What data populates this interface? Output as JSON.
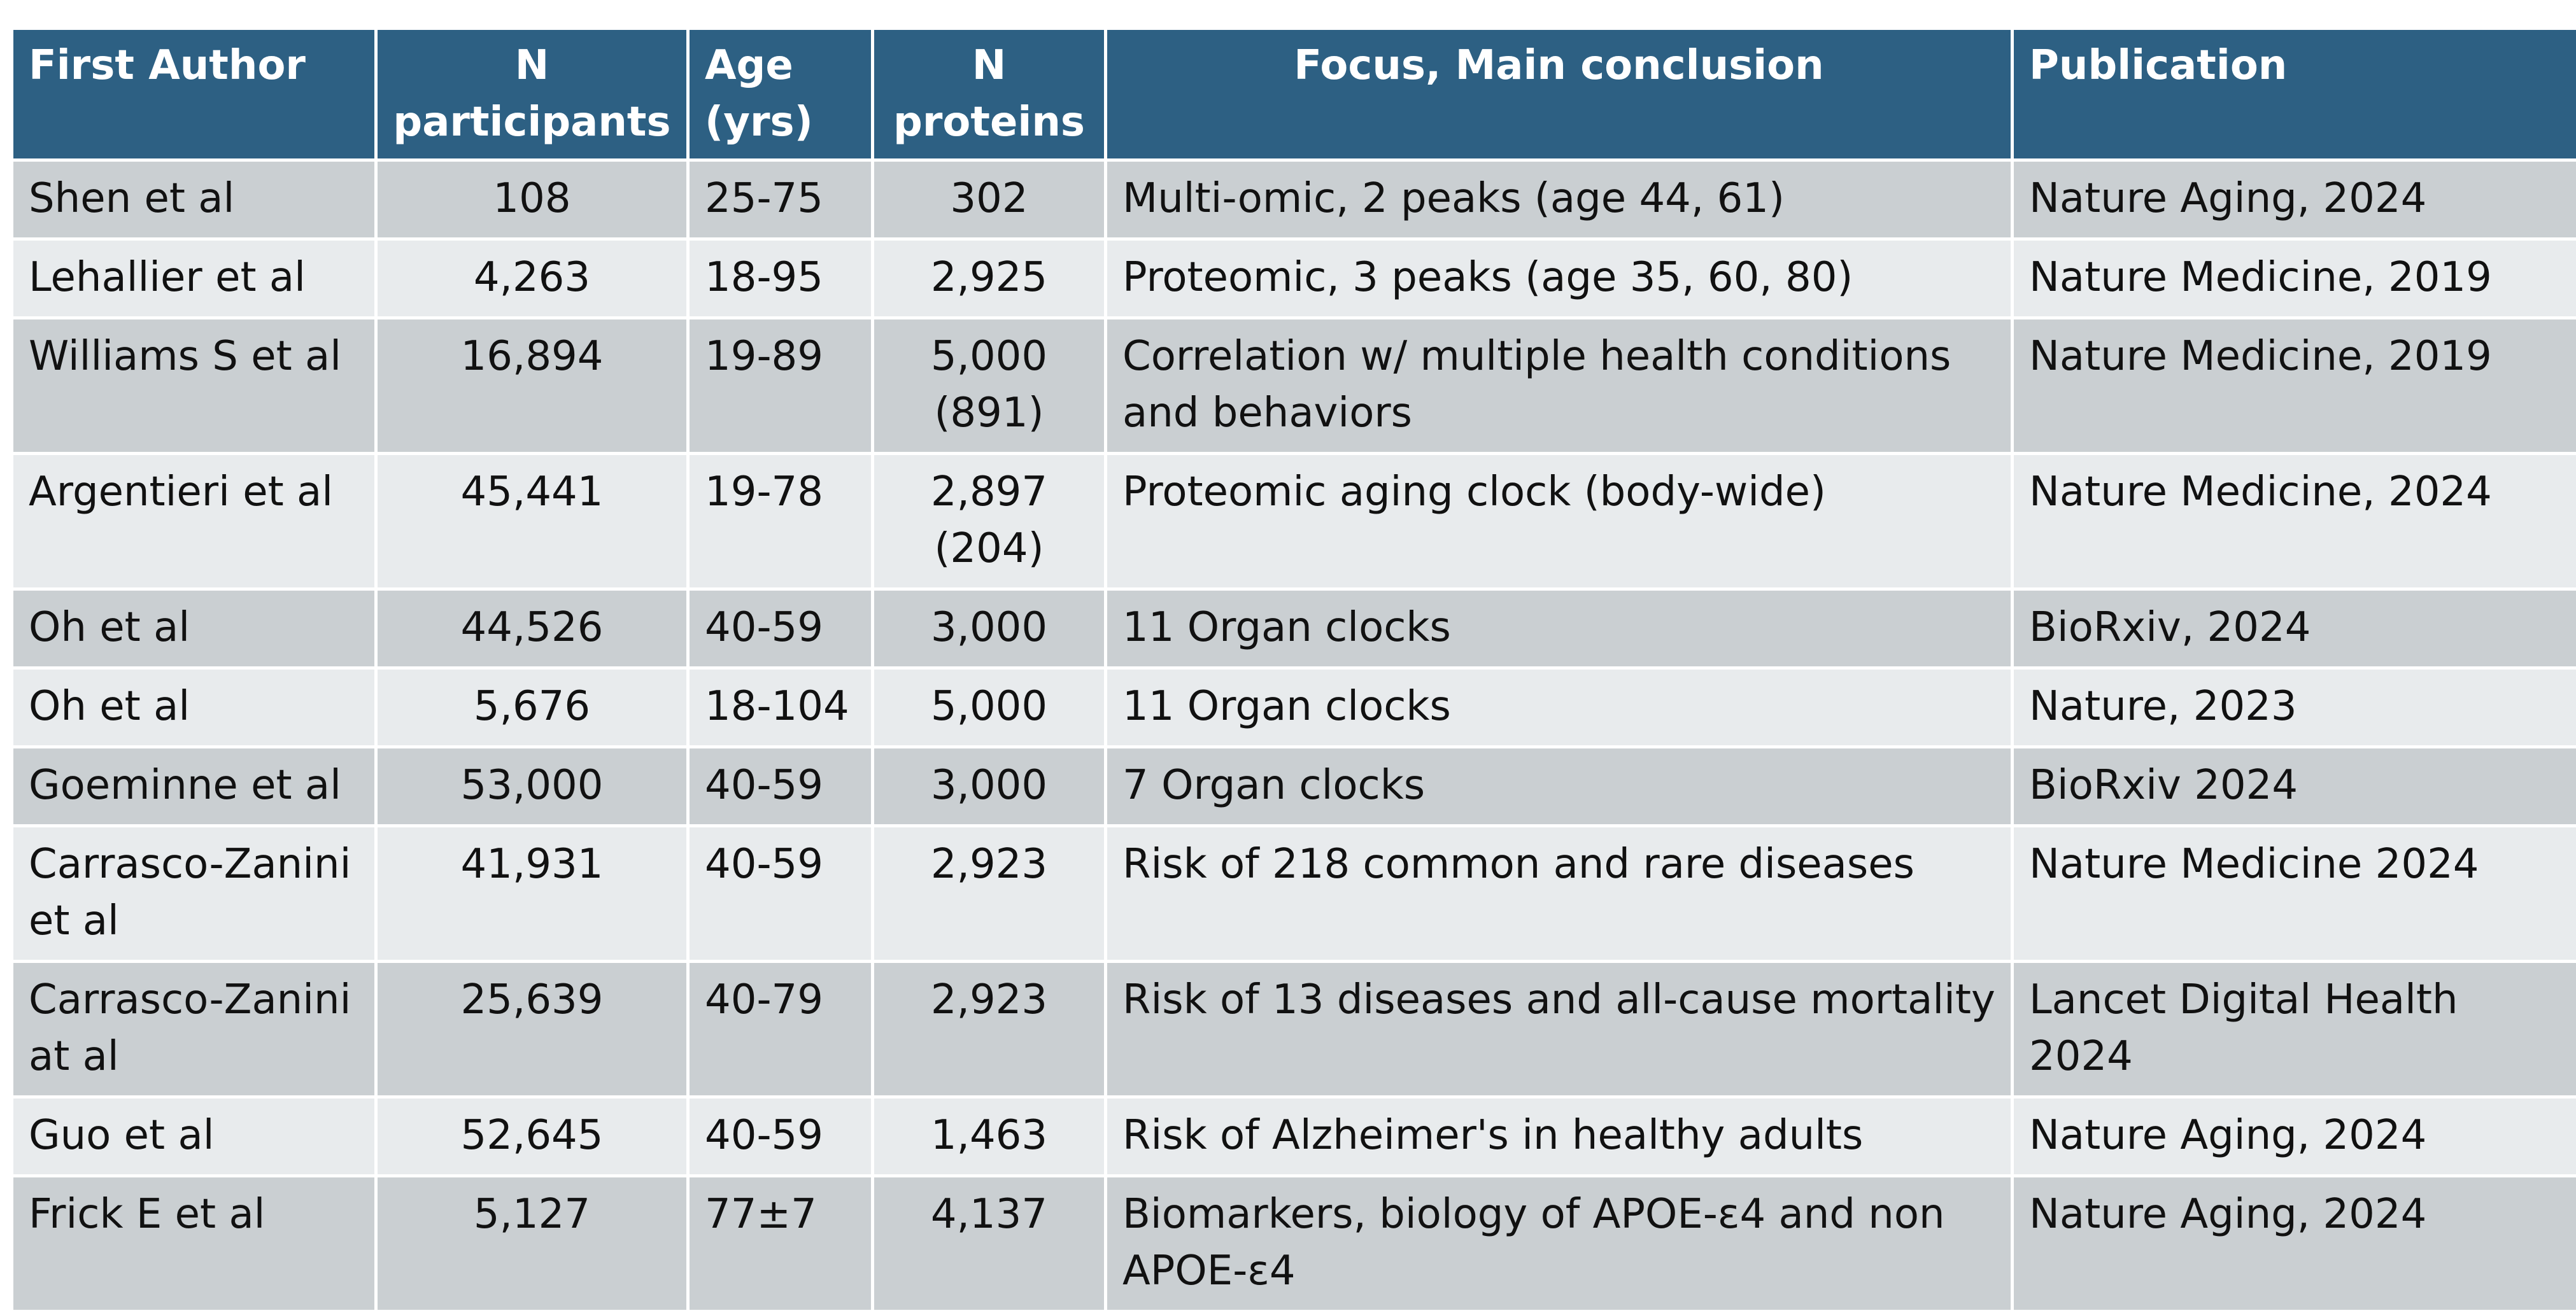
{
  "table": {
    "headers": [
      "First Author",
      "N participants",
      "Age (yrs)",
      "N proteins",
      "Focus, Main conclusion",
      "Publication"
    ],
    "rows": [
      {
        "author": "Shen et al",
        "n_participants": "108",
        "age": "25-75",
        "n_proteins": "302",
        "focus": "Multi-omic, 2 peaks (age 44, 61)",
        "publication": "Nature Aging, 2024"
      },
      {
        "author": "Lehallier et al",
        "n_participants": "4,263",
        "age": "18-95",
        "n_proteins": "2,925",
        "focus": "Proteomic, 3 peaks (age 35,  60, 80)",
        "publication": "Nature Medicine, 2019"
      },
      {
        "author": "Williams  S et al",
        "n_participants": "16,894",
        "age": "19-89",
        "n_proteins": "5,000 (891)",
        "focus": "Correlation w/ multiple health conditions and behaviors",
        "publication": "Nature Medicine, 2019"
      },
      {
        "author": "Argentieri et al",
        "n_participants": "45,441",
        "age": "19-78",
        "n_proteins": "2,897 (204)",
        "focus": "Proteomic aging clock (body-wide)",
        "publication": "Nature Medicine, 2024"
      },
      {
        "author": "Oh et al",
        "n_participants": "44,526",
        "age": "40-59",
        "n_proteins": "3,000",
        "focus": "11 Organ clocks",
        "publication": "BioRxiv, 2024"
      },
      {
        "author": "Oh et al",
        "n_participants": "5,676",
        "age": "18-104",
        "n_proteins": "5,000",
        "focus": "11 Organ clocks",
        "publication": "Nature, 2023"
      },
      {
        "author": "Goeminne  et al",
        "n_participants": "53,000",
        "age": "40-59",
        "n_proteins": "3,000",
        "focus": "7 Organ clocks",
        "publication": "BioRxiv 2024"
      },
      {
        "author": "Carrasco-Zanini et al",
        "n_participants": "41,931",
        "age": "40-59",
        "n_proteins": "2,923",
        "focus": "Risk of 218 common and rare diseases",
        "publication": "Nature Medicine 2024"
      },
      {
        "author": "Carrasco-Zanini at al",
        "n_participants": "25,639",
        "age": "40-79",
        "n_proteins": "2,923",
        "focus": "Risk of 13 diseases and all-cause mortality",
        "publication": "Lancet Digital Health 2024"
      },
      {
        "author": "Guo et al",
        "n_participants": "52,645",
        "age": "40-59",
        "n_proteins": "1,463",
        "focus": "Risk of Alzheimer's in healthy adults",
        "publication": "Nature Aging, 2024"
      },
      {
        "author": "Frick E et al",
        "n_participants": "5,127",
        "age": "77±7",
        "n_proteins": "4,137",
        "focus": "Biomarkers, biology of APOE-ε4 and non APOE-ε4",
        "publication": "Nature Aging, 2024"
      }
    ]
  },
  "colors": {
    "header_bg": "#2d6083",
    "row_dark": "#cacfd2",
    "row_light": "#e8ebed",
    "text": "#111111"
  }
}
